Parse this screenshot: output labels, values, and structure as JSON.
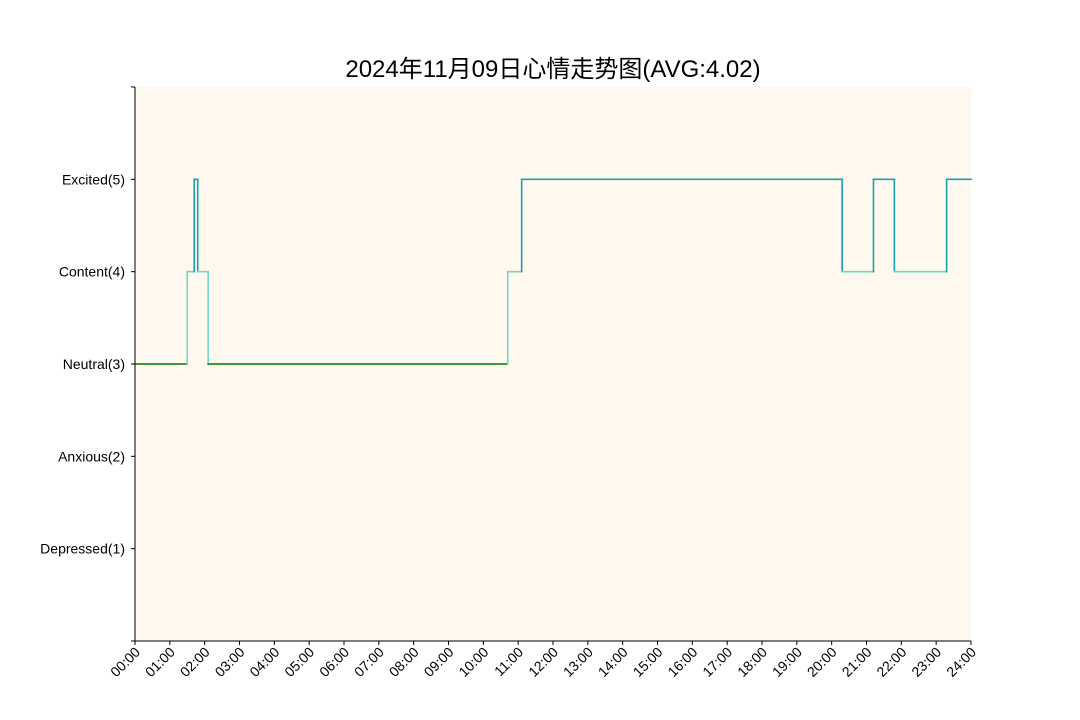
{
  "chart_data": {
    "type": "line",
    "step": true,
    "title": "2024年11月09日心情走势图(AVG:4.02)",
    "xlabel": "",
    "ylabel": "",
    "xlim": [
      0,
      24
    ],
    "ylim": [
      0,
      6
    ],
    "x_ticks": [
      0,
      1,
      2,
      3,
      4,
      5,
      6,
      7,
      8,
      9,
      10,
      11,
      12,
      13,
      14,
      15,
      16,
      17,
      18,
      19,
      20,
      21,
      22,
      23,
      24
    ],
    "x_tick_labels": [
      "00:00",
      "01:00",
      "02:00",
      "03:00",
      "04:00",
      "05:00",
      "06:00",
      "07:00",
      "08:00",
      "09:00",
      "10:00",
      "11:00",
      "12:00",
      "13:00",
      "14:00",
      "15:00",
      "16:00",
      "17:00",
      "18:00",
      "19:00",
      "20:00",
      "21:00",
      "22:00",
      "23:00",
      "24:00"
    ],
    "y_ticks": [
      1,
      2,
      3,
      4,
      5
    ],
    "y_tick_labels": [
      "Depressed(1)",
      "Anxious(2)",
      "Neutral(3)",
      "Content(4)",
      "Excited(5)"
    ],
    "background_color": "#fff8ee",
    "level_colors": {
      "3": "#007a00",
      "4": "#6dd9c4",
      "5": "#17a2aa"
    },
    "points": [
      {
        "x": 0.0,
        "y": 3
      },
      {
        "x": 1.5,
        "y": 4
      },
      {
        "x": 1.7,
        "y": 5
      },
      {
        "x": 1.8,
        "y": 4
      },
      {
        "x": 2.1,
        "y": 3
      },
      {
        "x": 10.7,
        "y": 4
      },
      {
        "x": 11.1,
        "y": 5
      },
      {
        "x": 20.3,
        "y": 4
      },
      {
        "x": 21.2,
        "y": 5
      },
      {
        "x": 21.8,
        "y": 4
      },
      {
        "x": 23.3,
        "y": 5
      },
      {
        "x": 24.0,
        "y": 5
      }
    ],
    "grid": false,
    "legend": "none"
  }
}
